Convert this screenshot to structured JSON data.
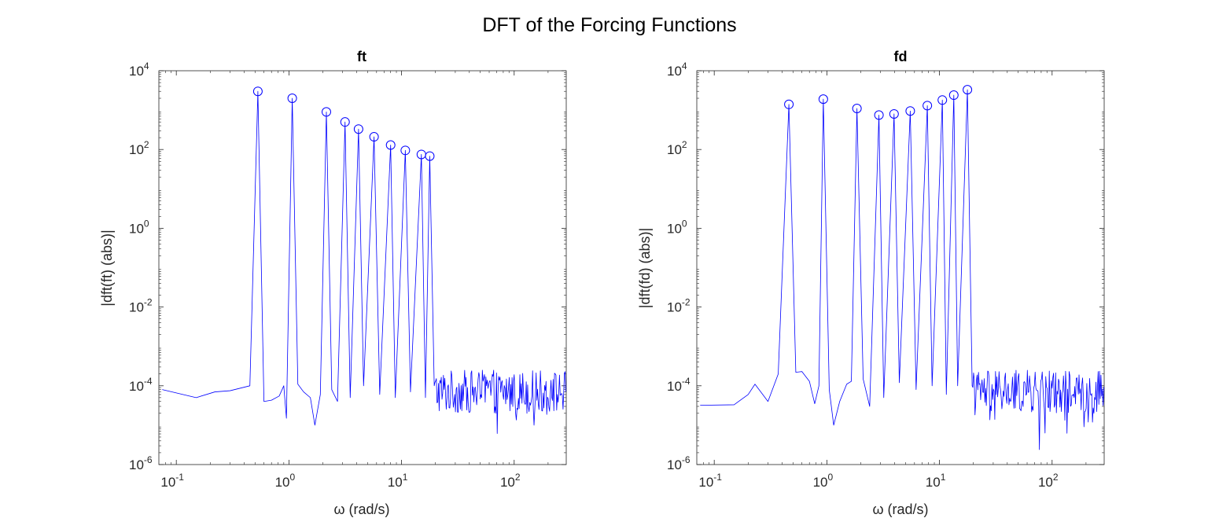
{
  "figure_title": "DFT of the Forcing Functions",
  "chart_data": [
    {
      "type": "line",
      "title": "ft",
      "xlabel": "ω (rad/s)",
      "ylabel": "|dft(ft) (abs)|",
      "x_scale": "log",
      "y_scale": "log",
      "xlim": [
        0.07,
        290
      ],
      "ylim": [
        1e-06,
        10000.0
      ],
      "x_ticks": [
        {
          "value": 0.1,
          "base": "10",
          "exp": "-1"
        },
        {
          "value": 1,
          "base": "10",
          "exp": "0"
        },
        {
          "value": 10,
          "base": "10",
          "exp": "1"
        },
        {
          "value": 100,
          "base": "10",
          "exp": "2"
        }
      ],
      "y_ticks": [
        {
          "value": 1e-06,
          "base": "10",
          "exp": "-6"
        },
        {
          "value": 0.0001,
          "base": "10",
          "exp": "-4"
        },
        {
          "value": 0.01,
          "base": "10",
          "exp": "-2"
        },
        {
          "value": 1,
          "base": "10",
          "exp": "0"
        },
        {
          "value": 100,
          "base": "10",
          "exp": "2"
        },
        {
          "value": 10000,
          "base": "10",
          "exp": "4"
        }
      ],
      "grid": false,
      "line_color": "#0000ff",
      "series": [
        {
          "low_freq_points": [
            [
              0.075,
              8e-05
            ],
            [
              0.15,
              5e-05
            ],
            [
              0.22,
              7e-05
            ],
            [
              0.3,
              7.5e-05
            ],
            [
              0.45,
              0.0001
            ],
            [
              0.53,
              3000
            ],
            [
              0.6,
              4e-05
            ],
            [
              0.7,
              4.3e-05
            ],
            [
              0.82,
              5.5e-05
            ],
            [
              0.9,
              0.0001
            ],
            [
              0.95,
              1.5e-05
            ],
            [
              1.07,
              2000
            ],
            [
              1.2,
              0.00011
            ],
            [
              1.35,
              7e-05
            ],
            [
              1.55,
              5e-05
            ],
            [
              1.7,
              1e-05
            ],
            [
              1.9,
              6e-05
            ],
            [
              2.15,
              900
            ],
            [
              2.4,
              8e-05
            ],
            [
              2.7,
              4e-05
            ],
            [
              3.15,
              500
            ],
            [
              3.5,
              5e-05
            ],
            [
              4.15,
              330
            ],
            [
              4.6,
              0.0001
            ],
            [
              5.7,
              210
            ],
            [
              6.4,
              6e-05
            ],
            [
              8.0,
              130
            ],
            [
              8.8,
              5e-05
            ],
            [
              10.8,
              95
            ],
            [
              12.0,
              7e-05
            ],
            [
              15.0,
              75
            ],
            [
              16.3,
              5e-05
            ],
            [
              17.8,
              68
            ],
            [
              19.5,
              0.0001
            ]
          ],
          "noise_band": {
            "x_start": 19.5,
            "x_end": 290,
            "median": 8e-05,
            "spread_decades": 1.0
          }
        }
      ],
      "markers": {
        "style": "open-circle",
        "points": [
          [
            0.53,
            3000
          ],
          [
            1.07,
            2000
          ],
          [
            2.15,
            900
          ],
          [
            3.15,
            500
          ],
          [
            4.15,
            330
          ],
          [
            5.7,
            210
          ],
          [
            8.0,
            130
          ],
          [
            10.8,
            95
          ],
          [
            15.0,
            75
          ],
          [
            17.8,
            68
          ]
        ]
      }
    },
    {
      "type": "line",
      "title": "fd",
      "xlabel": "ω (rad/s)",
      "ylabel": "|dft(fd) (abs)|",
      "x_scale": "log",
      "y_scale": "log",
      "xlim": [
        0.07,
        290
      ],
      "ylim": [
        1e-06,
        10000.0
      ],
      "x_ticks": [
        {
          "value": 0.1,
          "base": "10",
          "exp": "-1"
        },
        {
          "value": 1,
          "base": "10",
          "exp": "0"
        },
        {
          "value": 10,
          "base": "10",
          "exp": "1"
        },
        {
          "value": 100,
          "base": "10",
          "exp": "2"
        }
      ],
      "y_ticks": [
        {
          "value": 1e-06,
          "base": "10",
          "exp": "-6"
        },
        {
          "value": 0.0001,
          "base": "10",
          "exp": "-4"
        },
        {
          "value": 0.01,
          "base": "10",
          "exp": "-2"
        },
        {
          "value": 1,
          "base": "10",
          "exp": "0"
        },
        {
          "value": 100,
          "base": "10",
          "exp": "2"
        },
        {
          "value": 10000,
          "base": "10",
          "exp": "4"
        }
      ],
      "grid": false,
      "line_color": "#0000ff",
      "series": [
        {
          "low_freq_points": [
            [
              0.075,
              3.2e-05
            ],
            [
              0.15,
              3.3e-05
            ],
            [
              0.2,
              6e-05
            ],
            [
              0.23,
              0.00011
            ],
            [
              0.3,
              4e-05
            ],
            [
              0.37,
              0.0002
            ],
            [
              0.46,
              1400
            ],
            [
              0.53,
              0.00022
            ],
            [
              0.6,
              0.00023
            ],
            [
              0.7,
              0.00013
            ],
            [
              0.78,
              3.5e-05
            ],
            [
              0.85,
              0.0001
            ],
            [
              0.93,
              1900
            ],
            [
              1.05,
              8e-05
            ],
            [
              1.15,
              1e-05
            ],
            [
              1.3,
              4e-05
            ],
            [
              1.5,
              0.00011
            ],
            [
              1.65,
              0.00013
            ],
            [
              1.85,
              1100
            ],
            [
              2.1,
              0.00015
            ],
            [
              2.4,
              3e-05
            ],
            [
              2.9,
              750
            ],
            [
              3.2,
              5e-05
            ],
            [
              3.95,
              800
            ],
            [
              4.4,
              0.00012
            ],
            [
              5.5,
              950
            ],
            [
              6.2,
              8e-05
            ],
            [
              7.8,
              1300
            ],
            [
              8.6,
              0.0001
            ],
            [
              10.6,
              1800
            ],
            [
              11.5,
              6e-05
            ],
            [
              13.4,
              2400
            ],
            [
              14.5,
              0.0001
            ],
            [
              17.7,
              3300
            ],
            [
              19.5,
              0.0001
            ]
          ],
          "noise_band": {
            "x_start": 19.5,
            "x_end": 290,
            "median": 8e-05,
            "spread_decades": 1.0
          }
        }
      ],
      "markers": {
        "style": "open-circle",
        "points": [
          [
            0.46,
            1400
          ],
          [
            0.93,
            1900
          ],
          [
            1.85,
            1100
          ],
          [
            2.9,
            750
          ],
          [
            3.95,
            800
          ],
          [
            5.5,
            950
          ],
          [
            7.8,
            1300
          ],
          [
            10.6,
            1800
          ],
          [
            13.4,
            2400
          ],
          [
            17.7,
            3300
          ]
        ]
      }
    }
  ]
}
